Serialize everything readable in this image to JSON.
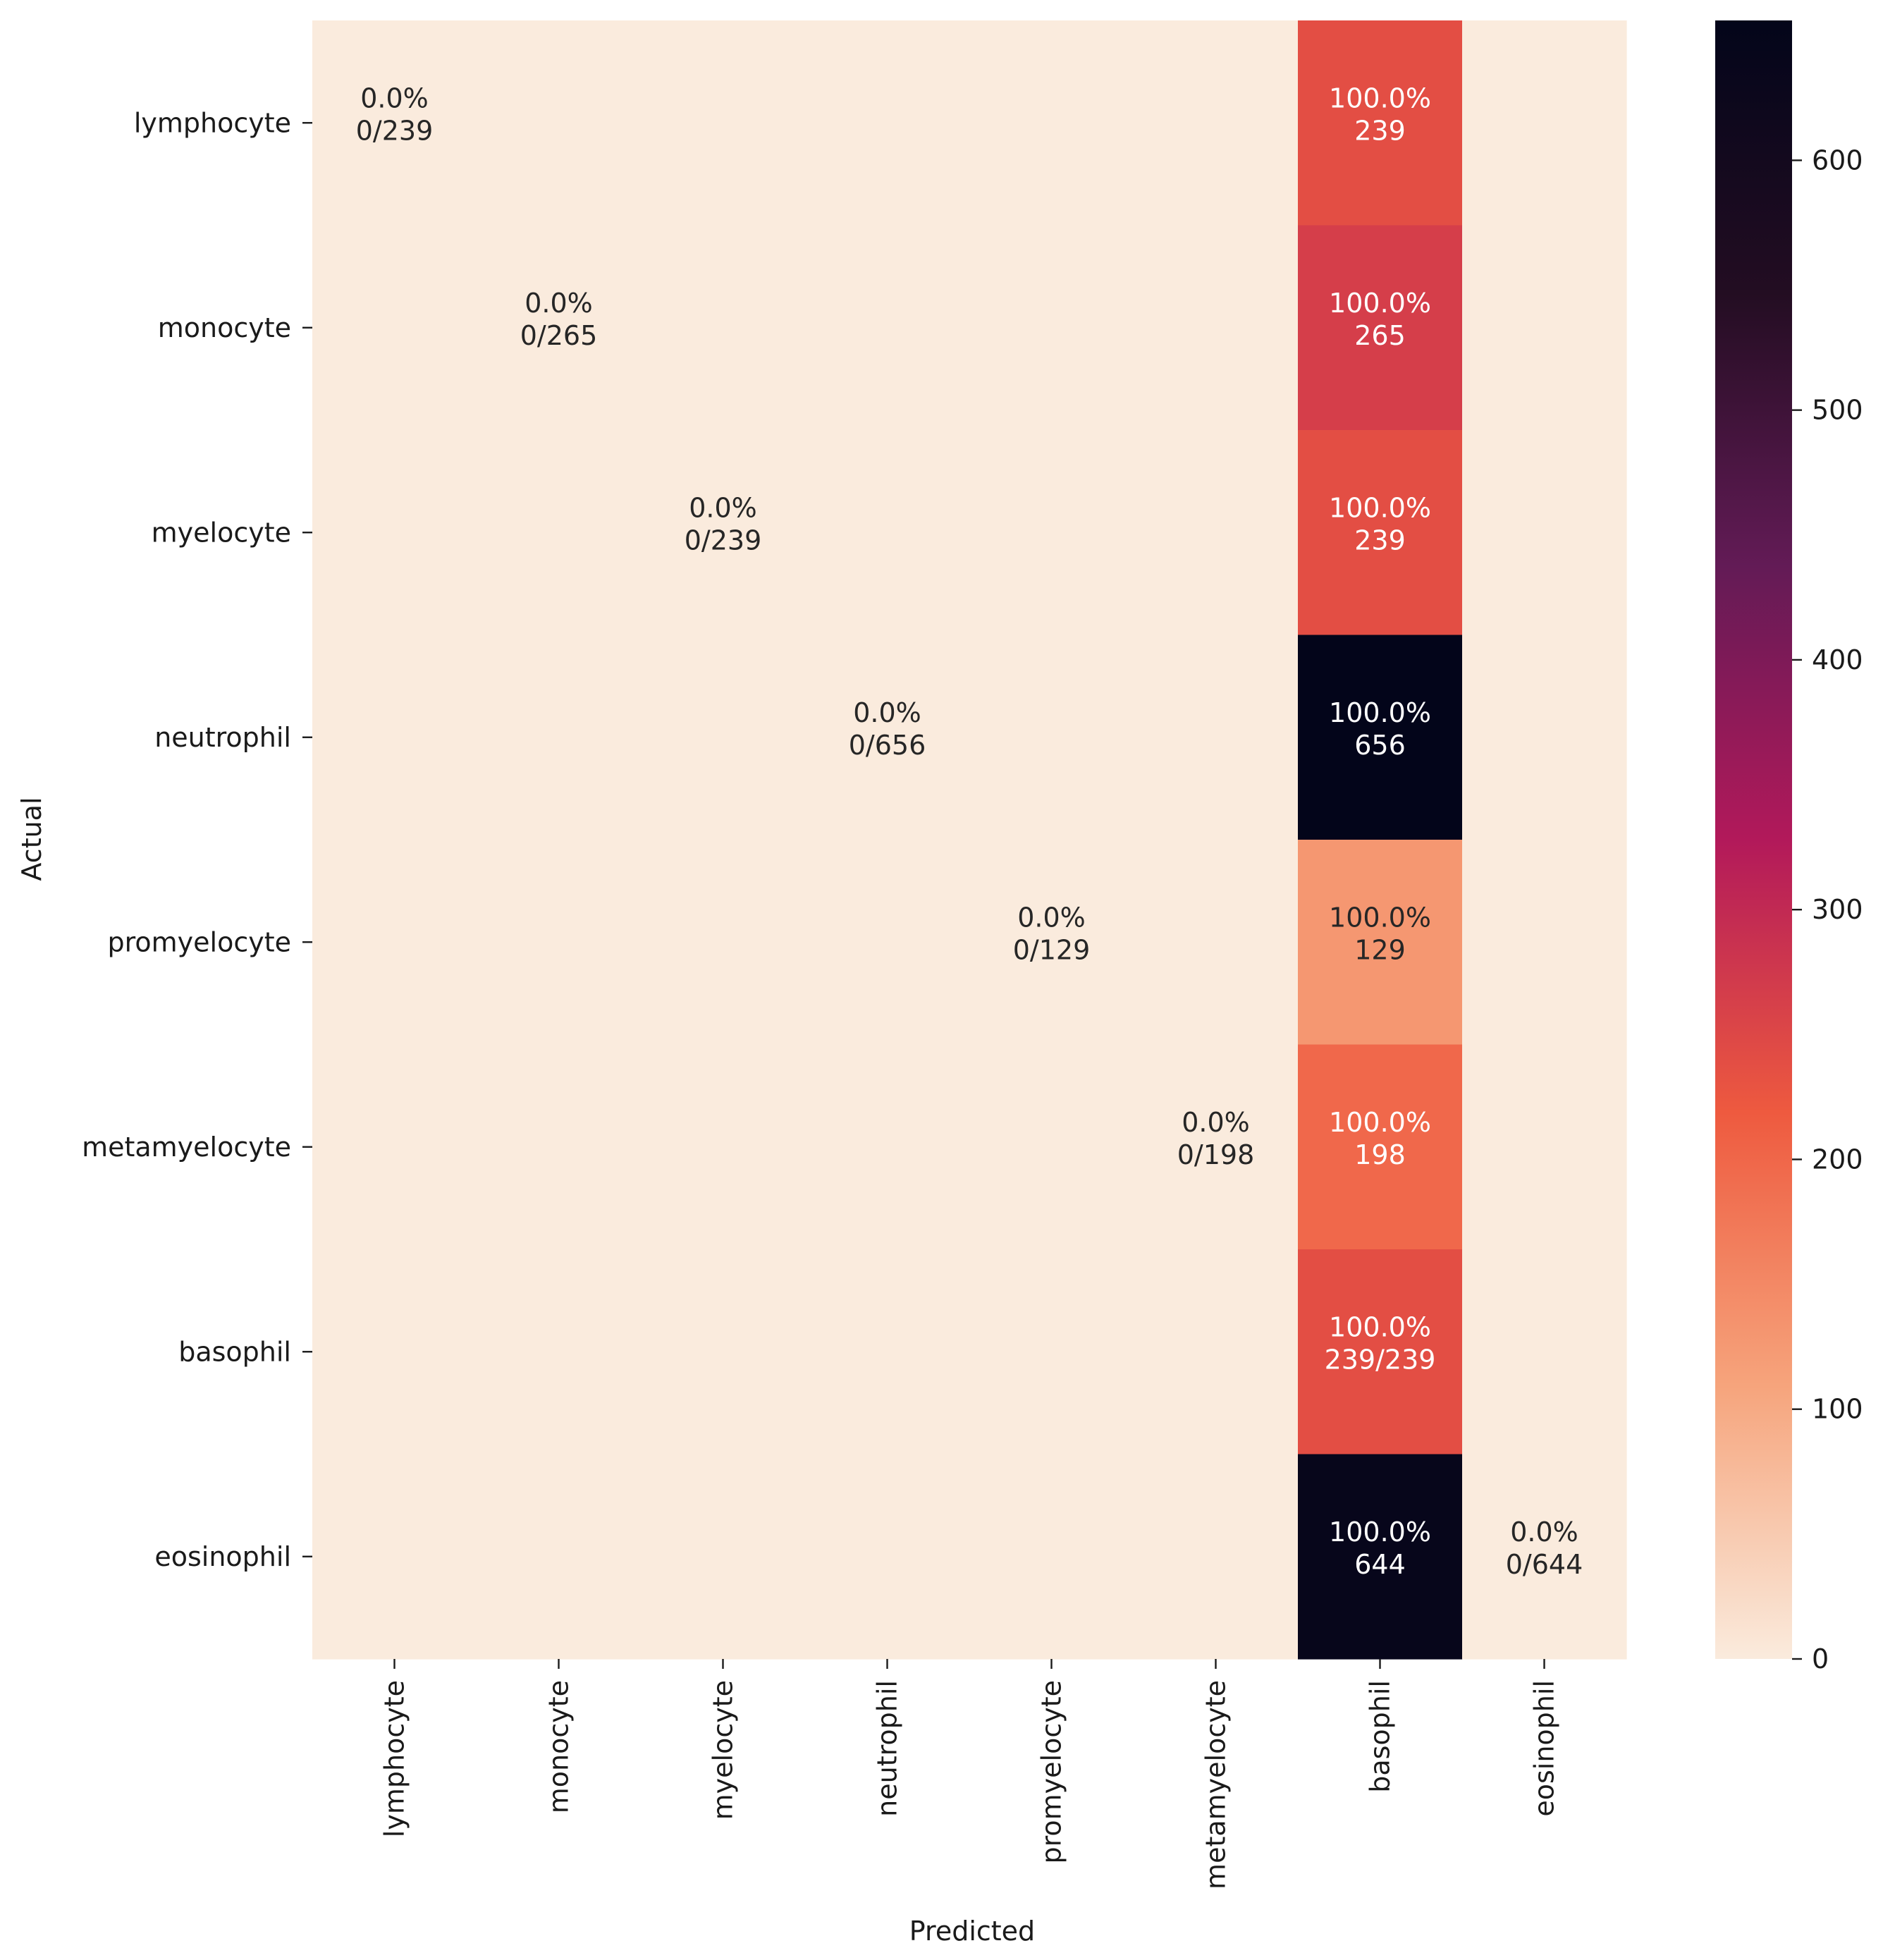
{
  "chart_data": {
    "type": "heatmap",
    "title": "",
    "xlabel": "Predicted",
    "ylabel": "Actual",
    "row_labels": [
      "lymphocyte",
      "monocyte",
      "myelocyte",
      "neutrophil",
      "promyelocyte",
      "metamyelocyte",
      "basophil",
      "eosinophil"
    ],
    "col_labels": [
      "lymphocyte",
      "monocyte",
      "myelocyte",
      "neutrophil",
      "promyelocyte",
      "metamyelocyte",
      "basophil",
      "eosinophil"
    ],
    "values": [
      [
        0,
        0,
        0,
        0,
        0,
        0,
        239,
        0
      ],
      [
        0,
        0,
        0,
        0,
        0,
        0,
        265,
        0
      ],
      [
        0,
        0,
        0,
        0,
        0,
        0,
        239,
        0
      ],
      [
        0,
        0,
        0,
        0,
        0,
        0,
        656,
        0
      ],
      [
        0,
        0,
        0,
        0,
        0,
        0,
        129,
        0
      ],
      [
        0,
        0,
        0,
        0,
        0,
        0,
        198,
        0
      ],
      [
        0,
        0,
        0,
        0,
        0,
        0,
        239,
        0
      ],
      [
        0,
        0,
        0,
        0,
        0,
        0,
        644,
        0
      ]
    ],
    "annotations": [
      {
        "row": 0,
        "col": 0,
        "lines": [
          "0.0%",
          "0/239"
        ]
      },
      {
        "row": 0,
        "col": 6,
        "lines": [
          "100.0%",
          "239"
        ]
      },
      {
        "row": 1,
        "col": 1,
        "lines": [
          "0.0%",
          "0/265"
        ]
      },
      {
        "row": 1,
        "col": 6,
        "lines": [
          "100.0%",
          "265"
        ]
      },
      {
        "row": 2,
        "col": 2,
        "lines": [
          "0.0%",
          "0/239"
        ]
      },
      {
        "row": 2,
        "col": 6,
        "lines": [
          "100.0%",
          "239"
        ]
      },
      {
        "row": 3,
        "col": 3,
        "lines": [
          "0.0%",
          "0/656"
        ]
      },
      {
        "row": 3,
        "col": 6,
        "lines": [
          "100.0%",
          "656"
        ]
      },
      {
        "row": 4,
        "col": 4,
        "lines": [
          "0.0%",
          "0/129"
        ]
      },
      {
        "row": 4,
        "col": 6,
        "lines": [
          "100.0%",
          "129"
        ]
      },
      {
        "row": 5,
        "col": 5,
        "lines": [
          "0.0%",
          "0/198"
        ]
      },
      {
        "row": 5,
        "col": 6,
        "lines": [
          "100.0%",
          "198"
        ]
      },
      {
        "row": 6,
        "col": 6,
        "lines": [
          "100.0%",
          "239/239"
        ]
      },
      {
        "row": 7,
        "col": 6,
        "lines": [
          "100.0%",
          "644"
        ]
      },
      {
        "row": 7,
        "col": 7,
        "lines": [
          "0.0%",
          "0/644"
        ]
      }
    ],
    "colorbar": {
      "range": [
        0,
        656
      ],
      "ticks": [
        0,
        100,
        200,
        300,
        400,
        500,
        600
      ],
      "colormap": "rocket_r",
      "colors": [
        "#faebdd",
        "#f6a47c",
        "#ee5a3f",
        "#b2195a",
        "#631b56",
        "#230d22",
        "#03051a"
      ]
    },
    "grid": false,
    "legend": "colorbar-right"
  }
}
